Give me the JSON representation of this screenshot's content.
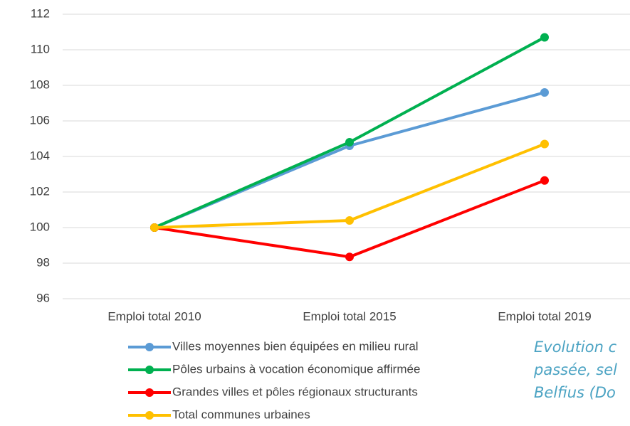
{
  "chart_data": {
    "type": "line",
    "categories": [
      "Emploi total 2010",
      "Emploi total 2015",
      "Emploi total 2019"
    ],
    "series": [
      {
        "name": "Villes moyennes bien équipées en milieu rural",
        "color": "#5b9bd5",
        "values": [
          100,
          104.6,
          107.6
        ]
      },
      {
        "name": "Pôles urbains à vocation économique affirmée",
        "color": "#00b050",
        "values": [
          100,
          104.8,
          110.7
        ]
      },
      {
        "name": "Grandes villes et pôles régionaux structurants",
        "color": "#ff0000",
        "values": [
          100,
          98.35,
          102.65
        ]
      },
      {
        "name": "Total communes urbaines",
        "color": "#ffc000",
        "values": [
          100,
          100.4,
          104.7
        ]
      }
    ],
    "ylim": [
      96,
      112
    ],
    "yticks": [
      96,
      98,
      100,
      102,
      104,
      106,
      108,
      110,
      112
    ],
    "grid": true,
    "annotations": [
      "Evolution c",
      "passée, sel",
      "Belfius (Do"
    ]
  }
}
